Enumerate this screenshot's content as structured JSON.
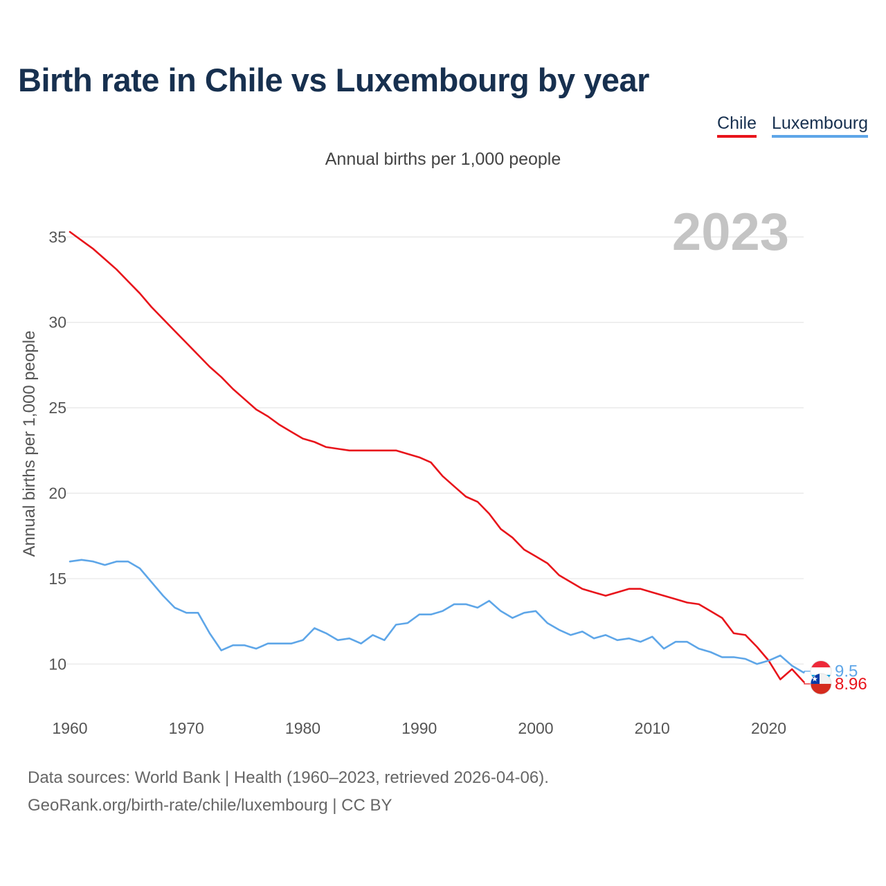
{
  "colors": {
    "chile": "#e8141b",
    "luxembourg": "#5ea6e8",
    "title": "#17304f",
    "grid": "#e6e6e6",
    "year": "#c4c4c4"
  },
  "header": {
    "title": "Birth rate in Chile vs Luxembourg by year"
  },
  "legend": {
    "items": [
      {
        "label": "Chile"
      },
      {
        "label": "Luxembourg"
      }
    ]
  },
  "footer": {
    "line1": "Data sources: World Bank | Health (1960–2023, retrieved 2026-04-06).",
    "line2": "GeoRank.org/birth-rate/chile/luxembourg | CC BY"
  },
  "chart_data": {
    "type": "line",
    "title": "Birth rate in Chile vs Luxembourg by year",
    "subtitle": "Annual births per 1,000 people",
    "ylabel": "Annual births per 1,000 people",
    "xlabel": "",
    "year_label": "2023",
    "xlim": [
      1960,
      2023
    ],
    "ylim": [
      7.5,
      37
    ],
    "x_ticks": [
      1960,
      1970,
      1980,
      1990,
      2000,
      2010,
      2020
    ],
    "y_ticks": [
      10,
      15,
      20,
      25,
      30,
      35
    ],
    "grid": true,
    "legend_position": "top-right",
    "x": [
      1960,
      1961,
      1962,
      1963,
      1964,
      1965,
      1966,
      1967,
      1968,
      1969,
      1970,
      1971,
      1972,
      1973,
      1974,
      1975,
      1976,
      1977,
      1978,
      1979,
      1980,
      1981,
      1982,
      1983,
      1984,
      1985,
      1986,
      1987,
      1988,
      1989,
      1990,
      1991,
      1992,
      1993,
      1994,
      1995,
      1996,
      1997,
      1998,
      1999,
      2000,
      2001,
      2002,
      2003,
      2004,
      2005,
      2006,
      2007,
      2008,
      2009,
      2010,
      2011,
      2012,
      2013,
      2014,
      2015,
      2016,
      2017,
      2018,
      2019,
      2020,
      2021,
      2022,
      2023
    ],
    "series": [
      {
        "name": "Chile",
        "color": "#e8141b",
        "end_label": "8.96",
        "values": [
          35.3,
          34.8,
          34.3,
          33.7,
          33.1,
          32.4,
          31.7,
          30.9,
          30.2,
          29.5,
          28.8,
          28.1,
          27.4,
          26.8,
          26.1,
          25.5,
          24.9,
          24.5,
          24.0,
          23.6,
          23.2,
          23.0,
          22.7,
          22.6,
          22.5,
          22.5,
          22.5,
          22.5,
          22.5,
          22.3,
          22.1,
          21.8,
          21.0,
          20.4,
          19.8,
          19.5,
          18.8,
          17.9,
          17.4,
          16.7,
          16.3,
          15.9,
          15.2,
          14.8,
          14.4,
          14.2,
          14.0,
          14.2,
          14.4,
          14.4,
          14.2,
          14.0,
          13.8,
          13.6,
          13.5,
          13.1,
          12.7,
          11.8,
          11.7,
          11.0,
          10.2,
          9.1,
          9.7,
          8.96
        ]
      },
      {
        "name": "Luxembourg",
        "color": "#5ea6e8",
        "end_label": "9.5",
        "values": [
          16.0,
          16.1,
          16.0,
          15.8,
          16.0,
          16.0,
          15.6,
          14.8,
          14.0,
          13.3,
          13.0,
          13.0,
          11.8,
          10.8,
          11.1,
          11.1,
          10.9,
          11.2,
          11.2,
          11.2,
          11.4,
          12.1,
          11.8,
          11.4,
          11.5,
          11.2,
          11.7,
          11.4,
          12.3,
          12.4,
          12.9,
          12.9,
          13.1,
          13.5,
          13.5,
          13.3,
          13.7,
          13.1,
          12.7,
          13.0,
          13.1,
          12.4,
          12.0,
          11.7,
          11.9,
          11.5,
          11.7,
          11.4,
          11.5,
          11.3,
          11.6,
          10.9,
          11.3,
          11.3,
          10.9,
          10.7,
          10.4,
          10.4,
          10.3,
          10.0,
          10.2,
          10.5,
          9.9,
          9.5
        ]
      }
    ]
  }
}
